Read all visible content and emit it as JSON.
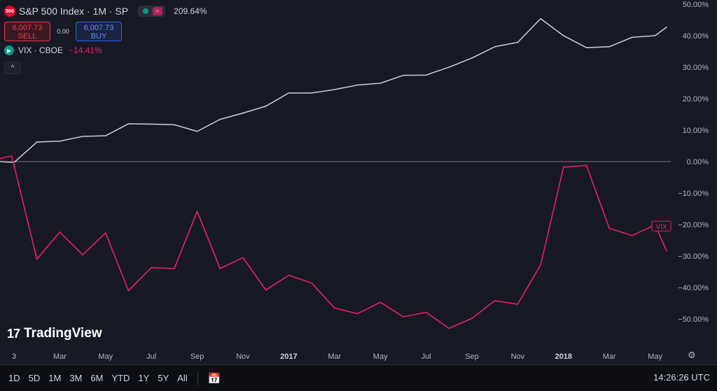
{
  "header": {
    "logo_text": "500",
    "symbol": "S&P 500 Index · 1M · SP",
    "change_pct": "209.64%",
    "sell_price": "6,007.73",
    "sell_label": "SELL",
    "buy_price": "6,007.73",
    "buy_label": "BUY",
    "spread": "0.00",
    "compare_symbol": "VIX · CBOE",
    "compare_change": "−14.41%",
    "collapse_icon": "chevron-up-icon"
  },
  "brand": {
    "logo_mark": "17",
    "name": "TradingView"
  },
  "bottom": {
    "timeframes": [
      "1D",
      "5D",
      "1M",
      "3M",
      "6M",
      "YTD",
      "1Y",
      "5Y",
      "All"
    ],
    "time": "14:26:26 UTC"
  },
  "colors": {
    "spx": "#c3c6ce",
    "vix": "#e91e63",
    "background": "#171a25",
    "zero_line": "#9598a1"
  },
  "chart_data": {
    "type": "line",
    "y_unit": "percent",
    "ylim": [
      -59,
      50
    ],
    "y_ticks": [
      50,
      40,
      30,
      20,
      10,
      0,
      -10,
      -20,
      -30,
      -40,
      -50
    ],
    "y_tick_labels": [
      "50.00%",
      "40.00%",
      "30.00%",
      "20.00%",
      "10.00%",
      "0.00%",
      "−10.00%",
      "−20.00%",
      "−30.00%",
      "−40.00%",
      "−50.00%"
    ],
    "x_labels": [
      {
        "month": 0.0,
        "label": "3",
        "bold": false
      },
      {
        "month": 2,
        "label": "Mar",
        "bold": false
      },
      {
        "month": 4,
        "label": "May",
        "bold": false
      },
      {
        "month": 6,
        "label": "Jul",
        "bold": false
      },
      {
        "month": 8,
        "label": "Sep",
        "bold": false
      },
      {
        "month": 10,
        "label": "Nov",
        "bold": false
      },
      {
        "month": 12,
        "label": "2017",
        "bold": true
      },
      {
        "month": 14,
        "label": "Mar",
        "bold": false
      },
      {
        "month": 16,
        "label": "May",
        "bold": false
      },
      {
        "month": 18,
        "label": "Jul",
        "bold": false
      },
      {
        "month": 20,
        "label": "Sep",
        "bold": false
      },
      {
        "month": 22,
        "label": "Nov",
        "bold": false
      },
      {
        "month": 24,
        "label": "2018",
        "bold": true
      },
      {
        "month": 26,
        "label": "Mar",
        "bold": false
      },
      {
        "month": 28,
        "label": "May",
        "bold": false
      }
    ],
    "series": [
      {
        "name": "S&P 500 Index",
        "values": [
          [
            -0.6,
            0.0
          ],
          [
            0.0,
            -0.3
          ],
          [
            1,
            6.2
          ],
          [
            2,
            6.5
          ],
          [
            3,
            8.0
          ],
          [
            4,
            8.2
          ],
          [
            5,
            12.0
          ],
          [
            6,
            11.9
          ],
          [
            7,
            11.7
          ],
          [
            8,
            9.6
          ],
          [
            9,
            13.4
          ],
          [
            10,
            15.4
          ],
          [
            11,
            17.6
          ],
          [
            12,
            21.8
          ],
          [
            13,
            21.8
          ],
          [
            14,
            22.9
          ],
          [
            15,
            24.3
          ],
          [
            16,
            24.9
          ],
          [
            17,
            27.4
          ],
          [
            18,
            27.5
          ],
          [
            19,
            30.0
          ],
          [
            20,
            32.9
          ],
          [
            21,
            36.5
          ],
          [
            22,
            37.9
          ],
          [
            23,
            45.4
          ],
          [
            24,
            40.0
          ],
          [
            25,
            36.2
          ],
          [
            26,
            36.5
          ],
          [
            27,
            39.5
          ],
          [
            28,
            40.0
          ],
          [
            28.5,
            42.7
          ]
        ]
      },
      {
        "name": "VIX",
        "values": [
          [
            -0.6,
            1.0
          ],
          [
            -0.1,
            1.8
          ],
          [
            1,
            -31.0
          ],
          [
            2,
            -22.4
          ],
          [
            3,
            -29.6
          ],
          [
            4,
            -22.7
          ],
          [
            5,
            -41.0
          ],
          [
            6,
            -33.7
          ],
          [
            7,
            -34.0
          ],
          [
            8,
            -15.8
          ],
          [
            9,
            -34.0
          ],
          [
            10,
            -30.5
          ],
          [
            11,
            -40.8
          ],
          [
            12,
            -36.1
          ],
          [
            13,
            -38.6
          ],
          [
            14,
            -46.5
          ],
          [
            15,
            -48.3
          ],
          [
            16,
            -44.7
          ],
          [
            17,
            -49.3
          ],
          [
            18,
            -47.9
          ],
          [
            19,
            -53.0
          ],
          [
            20,
            -49.8
          ],
          [
            21,
            -44.2
          ],
          [
            22,
            -45.3
          ],
          [
            23,
            -32.8
          ],
          [
            24,
            -1.8
          ],
          [
            25,
            -1.2
          ],
          [
            26,
            -21.2
          ],
          [
            27,
            -23.5
          ],
          [
            28,
            -20.1
          ],
          [
            28.5,
            -28.4
          ]
        ]
      }
    ],
    "label_tag": "VIX"
  }
}
